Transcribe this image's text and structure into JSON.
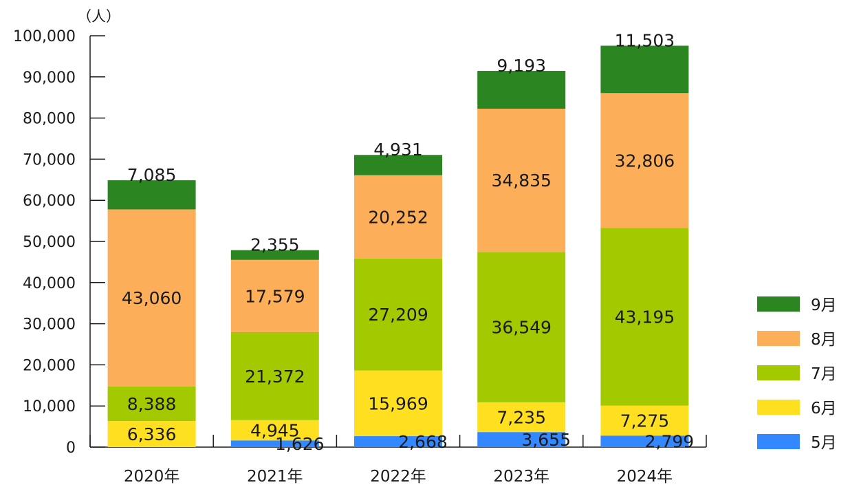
{
  "chart_data": {
    "type": "bar",
    "stacked": true,
    "y_unit_label": "（人）",
    "categories": [
      "2020年",
      "2021年",
      "2022年",
      "2023年",
      "2024年"
    ],
    "ylim": [
      0,
      100000
    ],
    "yticks": [
      0,
      10000,
      20000,
      30000,
      40000,
      50000,
      60000,
      70000,
      80000,
      90000,
      100000
    ],
    "ytick_labels": [
      "0",
      "10,000",
      "20,000",
      "30,000",
      "40,000",
      "50,000",
      "60,000",
      "70,000",
      "80,000",
      "90,000",
      "100,000"
    ],
    "series": [
      {
        "name": "5月",
        "color": "#3388ff",
        "values": [
          0,
          1626,
          2668,
          3655,
          2799
        ],
        "labels": [
          "",
          "1,626",
          "2,668",
          "3,655",
          "2,799"
        ]
      },
      {
        "name": "6月",
        "color": "#ffe021",
        "values": [
          6336,
          4945,
          15969,
          7235,
          7275
        ],
        "labels": [
          "6,336",
          "4,945",
          "15,969",
          "7,235",
          "7,275"
        ]
      },
      {
        "name": "7月",
        "color": "#a3c900",
        "values": [
          8388,
          21372,
          27209,
          36549,
          43195
        ],
        "labels": [
          "8,388",
          "21,372",
          "27,209",
          "36,549",
          "43,195"
        ]
      },
      {
        "name": "8月",
        "color": "#fdae59",
        "values": [
          43060,
          17579,
          20252,
          34835,
          32806
        ],
        "labels": [
          "43,060",
          "17,579",
          "20,252",
          "34,835",
          "32,806"
        ]
      },
      {
        "name": "9月",
        "color": "#2b8521",
        "values": [
          7085,
          2355,
          4931,
          9193,
          11503
        ],
        "labels": [
          "7,085",
          "2,355",
          "4,931",
          "9,193",
          "11,503"
        ]
      }
    ],
    "legend_order": [
      "9月",
      "8月",
      "7月",
      "6月",
      "5月"
    ],
    "legend_position": "right",
    "grid": false
  }
}
